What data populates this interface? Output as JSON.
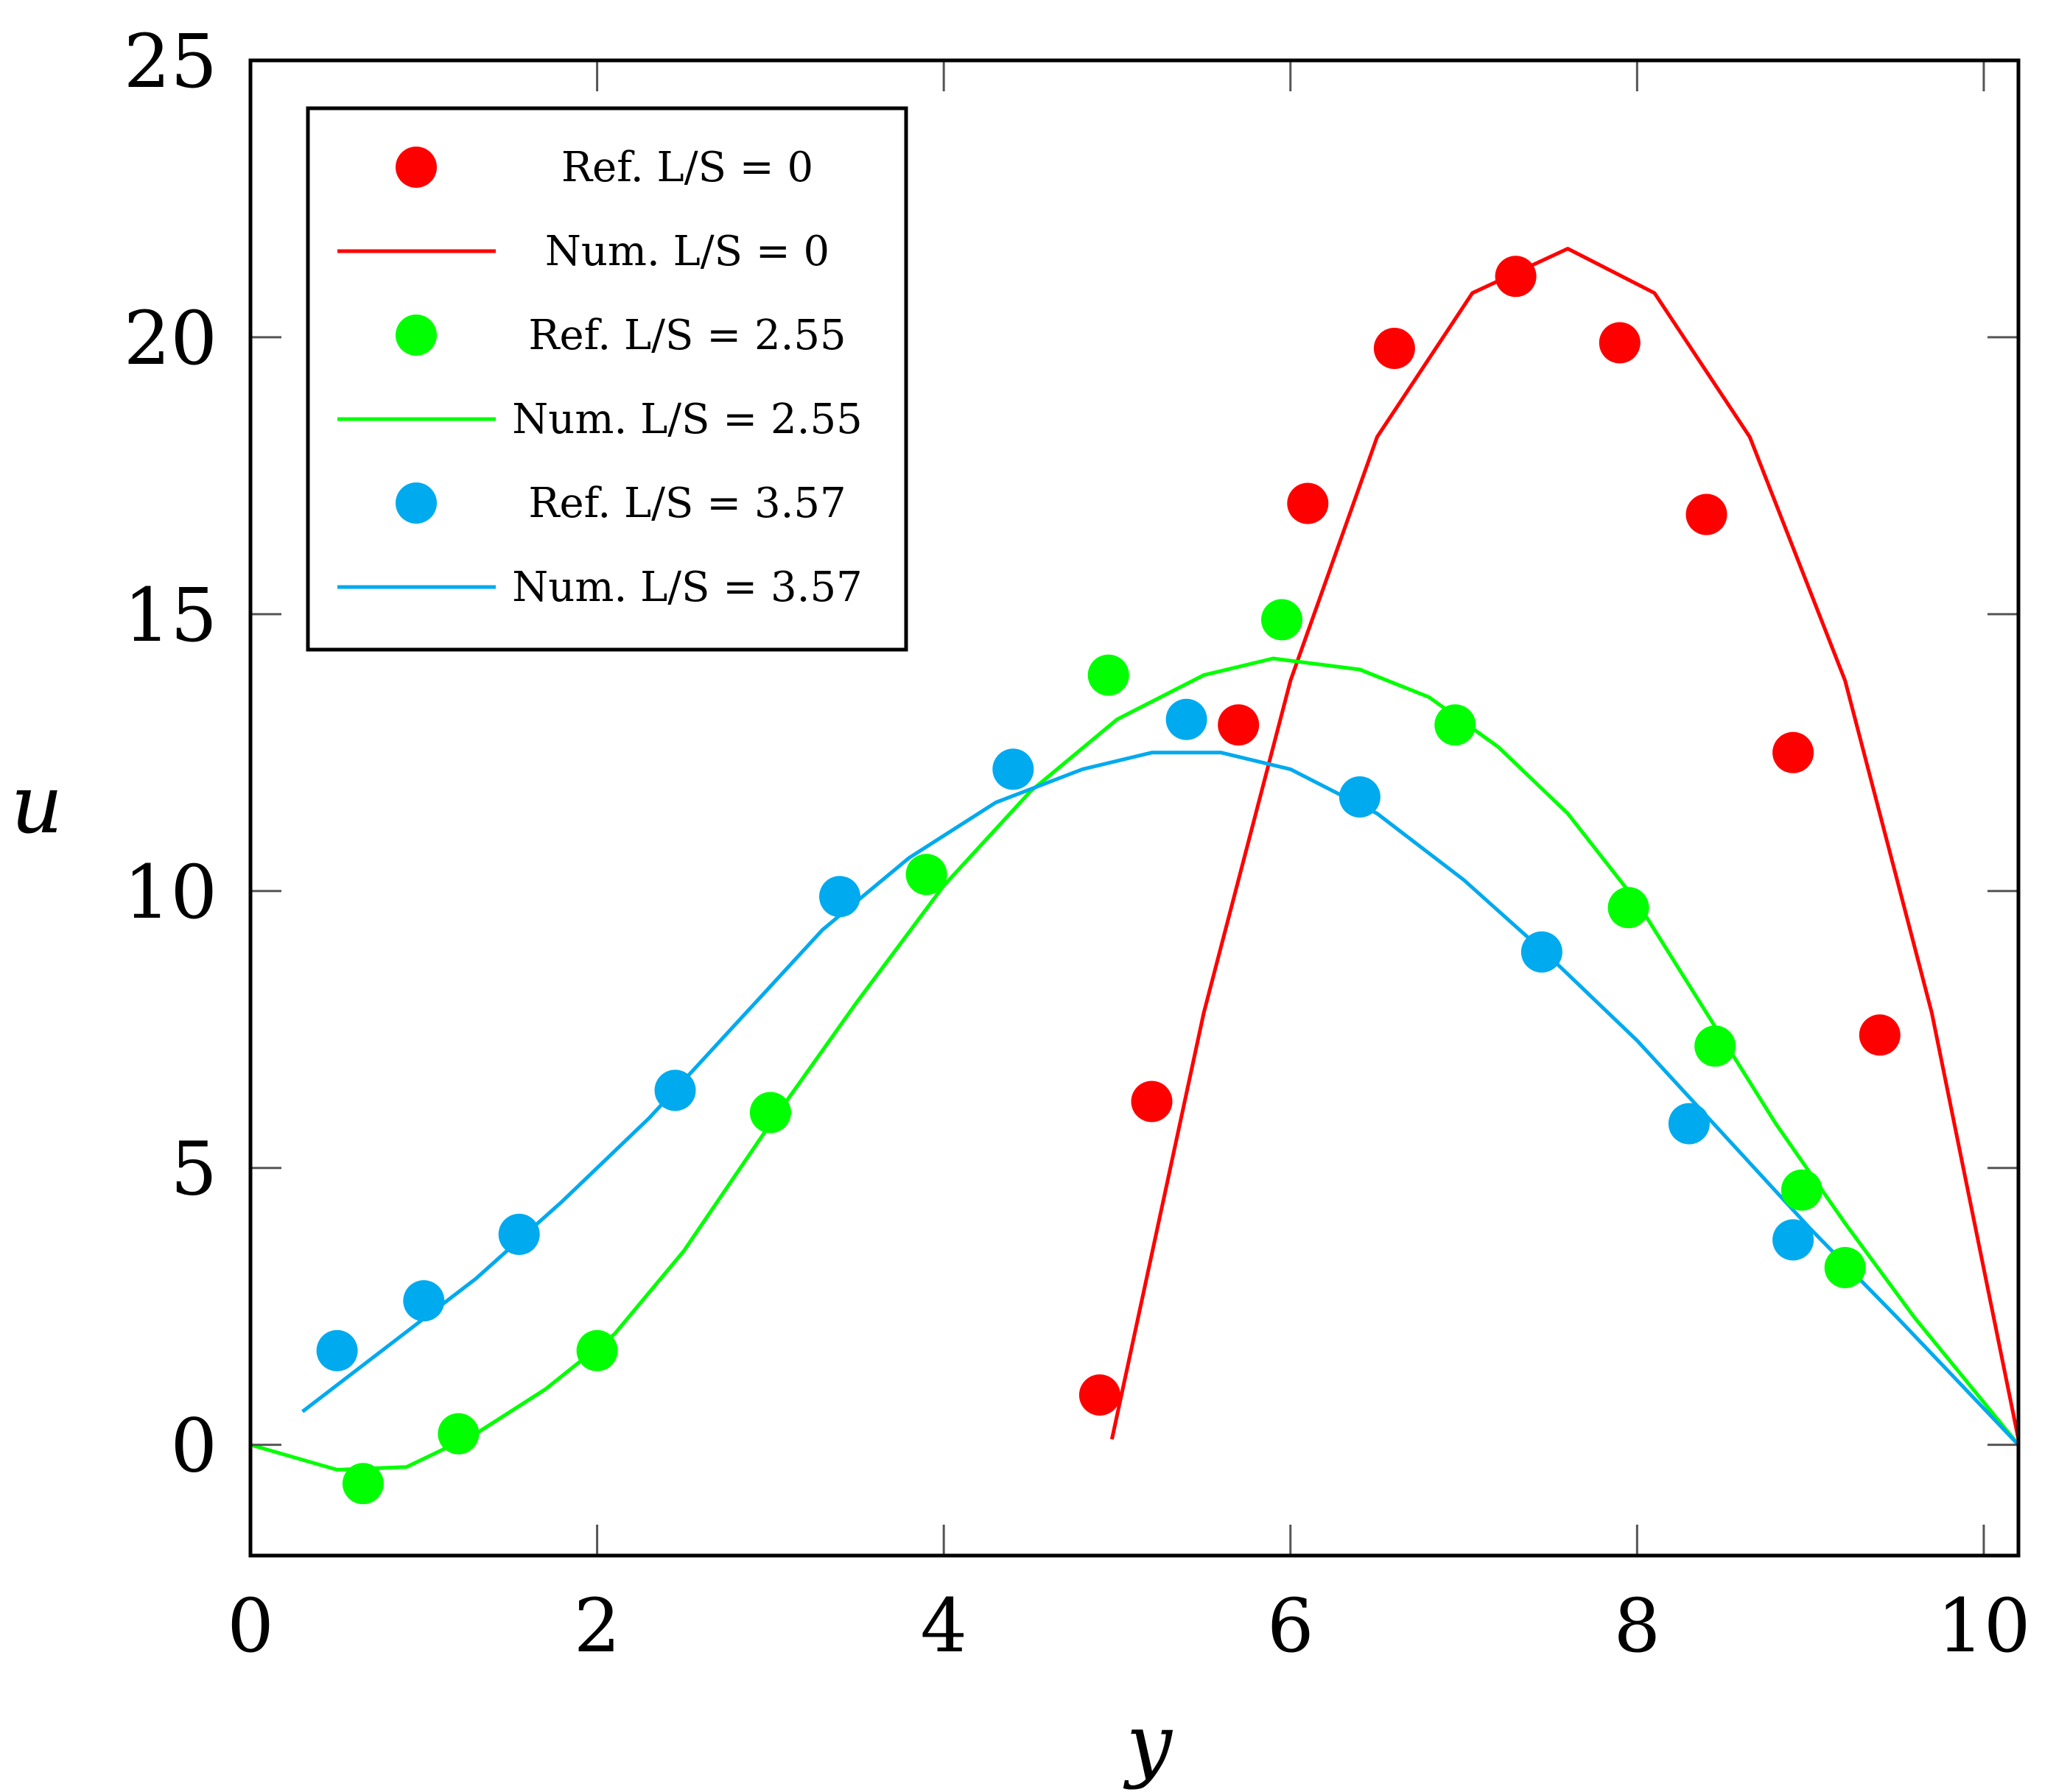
{
  "chart_data": {
    "type": "scatter",
    "title": "",
    "xlabel": "y",
    "ylabel": "u",
    "xlim": [
      0,
      10.2
    ],
    "ylim": [
      -2,
      25
    ],
    "xticks": [
      0,
      2,
      4,
      6,
      8,
      10
    ],
    "yticks": [
      0,
      5,
      10,
      15,
      20,
      25
    ],
    "xtick_labels": [
      "0",
      "2",
      "4",
      "6",
      "8",
      "10"
    ],
    "ytick_labels": [
      "0",
      "5",
      "10",
      "15",
      "20",
      "25"
    ],
    "grid": false,
    "legend_position": "top-left",
    "series": [
      {
        "name": "Ref. L/S = 0",
        "kind": "markers",
        "color": "#ff0000",
        "points": [
          [
            4.9,
            0.9
          ],
          [
            5.2,
            6.2
          ],
          [
            5.7,
            13.0
          ],
          [
            6.1,
            17.0
          ],
          [
            6.6,
            19.8
          ],
          [
            7.3,
            21.1
          ],
          [
            7.9,
            19.9
          ],
          [
            8.4,
            16.8
          ],
          [
            8.9,
            12.5
          ],
          [
            9.4,
            7.4
          ]
        ]
      },
      {
        "name": "Num. L/S = 0",
        "kind": "line",
        "color": "#ff0000",
        "points": [
          [
            4.97,
            0.1
          ],
          [
            5.5,
            7.8
          ],
          [
            6.0,
            13.8
          ],
          [
            6.5,
            18.2
          ],
          [
            7.05,
            20.8
          ],
          [
            7.6,
            21.6
          ],
          [
            8.1,
            20.8
          ],
          [
            8.65,
            18.2
          ],
          [
            9.2,
            13.8
          ],
          [
            9.7,
            7.8
          ],
          [
            10.2,
            0.1
          ]
        ]
      },
      {
        "name": "Ref. L/S = 2.55",
        "kind": "markers",
        "color": "#00ff00",
        "points": [
          [
            0.65,
            -0.7
          ],
          [
            1.2,
            0.2
          ],
          [
            2.0,
            1.7
          ],
          [
            3.0,
            6.0
          ],
          [
            3.9,
            10.3
          ],
          [
            4.95,
            13.9
          ],
          [
            5.95,
            14.9
          ],
          [
            6.95,
            13.0
          ],
          [
            7.95,
            9.7
          ],
          [
            8.45,
            7.2
          ],
          [
            8.95,
            4.6
          ],
          [
            9.2,
            3.2
          ]
        ]
      },
      {
        "name": "Num. L/S = 2.55",
        "kind": "line",
        "color": "#00ff00",
        "points": [
          [
            0.0,
            0.0
          ],
          [
            0.5,
            -0.45
          ],
          [
            0.9,
            -0.4
          ],
          [
            1.3,
            0.2
          ],
          [
            1.7,
            1.0
          ],
          [
            2.1,
            2.0
          ],
          [
            2.5,
            3.5
          ],
          [
            3.0,
            5.8
          ],
          [
            3.5,
            8.0
          ],
          [
            4.0,
            10.1
          ],
          [
            4.5,
            11.8
          ],
          [
            5.0,
            13.1
          ],
          [
            5.5,
            13.9
          ],
          [
            5.9,
            14.2
          ],
          [
            6.4,
            14.0
          ],
          [
            6.8,
            13.5
          ],
          [
            7.2,
            12.6
          ],
          [
            7.6,
            11.4
          ],
          [
            8.0,
            9.8
          ],
          [
            8.4,
            7.8
          ],
          [
            8.8,
            5.8
          ],
          [
            9.2,
            4.0
          ],
          [
            9.6,
            2.3
          ],
          [
            10.2,
            0.0
          ]
        ]
      },
      {
        "name": "Ref. L/S = 3.57",
        "kind": "markers",
        "color": "#00aaee",
        "points": [
          [
            0.5,
            1.7
          ],
          [
            1.0,
            2.6
          ],
          [
            1.55,
            3.8
          ],
          [
            2.45,
            6.4
          ],
          [
            3.4,
            9.9
          ],
          [
            4.4,
            12.2
          ],
          [
            5.4,
            13.1
          ],
          [
            6.4,
            11.7
          ],
          [
            7.45,
            8.9
          ],
          [
            8.3,
            5.8
          ],
          [
            8.9,
            3.7
          ]
        ]
      },
      {
        "name": "Num. L/S = 3.57",
        "kind": "line",
        "color": "#00aaee",
        "points": [
          [
            0.3,
            0.6
          ],
          [
            0.8,
            1.8
          ],
          [
            1.3,
            3.0
          ],
          [
            1.8,
            4.4
          ],
          [
            2.3,
            5.9
          ],
          [
            2.8,
            7.6
          ],
          [
            3.3,
            9.3
          ],
          [
            3.8,
            10.6
          ],
          [
            4.3,
            11.6
          ],
          [
            4.8,
            12.2
          ],
          [
            5.2,
            12.5
          ],
          [
            5.6,
            12.5
          ],
          [
            6.0,
            12.2
          ],
          [
            6.5,
            11.4
          ],
          [
            7.0,
            10.2
          ],
          [
            7.5,
            8.8
          ],
          [
            8.0,
            7.3
          ],
          [
            8.5,
            5.6
          ],
          [
            9.0,
            3.9
          ],
          [
            9.5,
            2.3
          ],
          [
            10.2,
            0.0
          ]
        ]
      }
    ]
  }
}
